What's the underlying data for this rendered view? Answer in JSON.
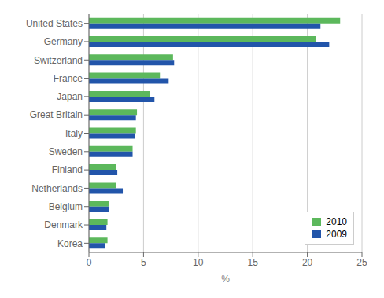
{
  "chart_data": {
    "type": "bar",
    "orientation": "horizontal",
    "categories": [
      "United States",
      "Germany",
      "Switzerland",
      "France",
      "Japan",
      "Great Britain",
      "Italy",
      "Sweden",
      "Finland",
      "Netherlands",
      "Belgium",
      "Denmark",
      "Korea"
    ],
    "series": [
      {
        "name": "2010",
        "color": "#5cb85c",
        "values": [
          23.0,
          20.8,
          7.7,
          6.5,
          5.6,
          4.4,
          4.3,
          4.0,
          2.5,
          2.5,
          1.8,
          1.7,
          1.7
        ]
      },
      {
        "name": "2009",
        "color": "#2255aa",
        "values": [
          21.2,
          22.0,
          7.8,
          7.3,
          6.0,
          4.3,
          4.2,
          4.0,
          2.6,
          3.1,
          1.8,
          1.6,
          1.5
        ]
      }
    ],
    "xlabel": "%",
    "xlim": [
      0,
      25
    ],
    "xticks": [
      0,
      5,
      10,
      15,
      20,
      25
    ],
    "grid": "x",
    "legend": "lower right"
  }
}
